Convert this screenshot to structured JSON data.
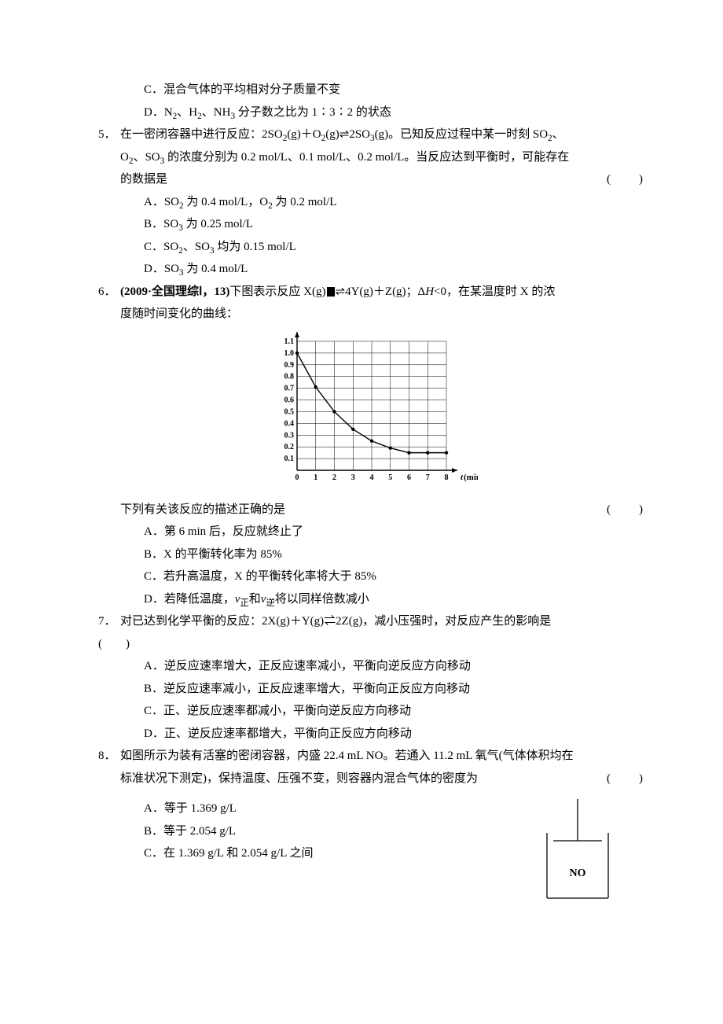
{
  "q4": {
    "optC": "C．混合气体的平均相对分子质量不变",
    "optD_pre": "D．N",
    "optD_mid1": "、H",
    "optD_mid2": "、NH",
    "optD_tail": " 分子数之比为 1∶3∶2 的状态"
  },
  "q5": {
    "num": "5．",
    "stem_pre": "在一密闭容器中进行反应：2SO",
    "stem_mid1": "(g)＋O",
    "stem_mid2": "(g)⇌2SO",
    "stem_mid3": "(g)。已知反应过程中某一时刻 SO",
    "line2_pre": "O",
    "line2_mid1": "、SO",
    "line2_mid2": " 的浓度分别为 0.2 mol/L、0.1 mol/L、0.2 mol/L。当反应达到平衡时，可能存在",
    "line3": "的数据是",
    "paren": "(　　)",
    "optA_pre": "A．SO",
    "optA_mid": " 为 0.4 mol/L，O",
    "optA_tail": " 为 0.2 mol/L",
    "optB_pre": "B．SO",
    "optB_tail": " 为 0.25 mol/L",
    "optC_pre": "C．SO",
    "optC_mid": "、SO",
    "optC_tail": " 均为 0.15 mol/L",
    "optD_pre": "D．SO",
    "optD_tail": " 为 0.4 mol/L"
  },
  "q6": {
    "num": "6．",
    "bold": "(2009·全国理综Ⅰ，13)",
    "stem_pre": "下图表示反应 X(g)",
    "stem_mid": "4Y(g)＋Z(g)；Δ",
    "stem_H": "H",
    "stem_lt": "<0，在某温度时 X 的浓",
    "line2": "度随时间变化的曲线：",
    "after_chart": "下列有关该反应的描述正确的是",
    "paren": "(　　)",
    "optA": "A．第 6 min 后，反应就终止了",
    "optB": "B．X 的平衡转化率为 85%",
    "optC": "C．若升高温度，X 的平衡转化率将大于 85%",
    "optD_pre": "D．若降低温度，",
    "optD_v1": "v",
    "optD_sub1": "正",
    "optD_mid": "和",
    "optD_v2": "v",
    "optD_sub2": "逆",
    "optD_tail": "将以同样倍数减小",
    "chart": {
      "type": "line",
      "x_label": "t(min)",
      "y_label": "c(mol/L)",
      "x_ticks": [
        0,
        1,
        2,
        3,
        4,
        5,
        6,
        7,
        8
      ],
      "y_ticks": [
        0.1,
        0.2,
        0.3,
        0.4,
        0.5,
        0.6,
        0.7,
        0.8,
        0.9,
        1.0,
        1.1
      ],
      "y_label_fontsize": 11,
      "tick_fontsize": 10,
      "points": [
        {
          "x": 0,
          "y": 1.0
        },
        {
          "x": 1,
          "y": 0.71
        },
        {
          "x": 2,
          "y": 0.5
        },
        {
          "x": 3,
          "y": 0.35
        },
        {
          "x": 4,
          "y": 0.25
        },
        {
          "x": 5,
          "y": 0.19
        },
        {
          "x": 6,
          "y": 0.15
        },
        {
          "x": 7,
          "y": 0.15
        },
        {
          "x": 8,
          "y": 0.15
        }
      ],
      "marker": "circle",
      "marker_size": 2.2,
      "line_width": 1.4,
      "axis_color": "#000000",
      "grid_color": "#000000",
      "grid_width": 0.5,
      "background_color": "#ffffff"
    }
  },
  "q7": {
    "num": "7．",
    "stem": "对已达到化学平衡的反应：2X(g)＋Y(g)⇌2Z(g)，减小压强时，对反应产生的影响是",
    "paren": "(　　)",
    "optA": "A．逆反应速率增大，正反应速率减小，平衡向逆反应方向移动",
    "optB": "B．逆反应速率减小，正反应速率增大，平衡向正反应方向移动",
    "optC": "C．正、逆反应速率都减小，平衡向逆反应方向移动",
    "optD": "D．正、逆反应速率都增大，平衡向正反应方向移动"
  },
  "q8": {
    "num": "8．",
    "stem1": "如图所示为装有活塞的密闭容器，内盛 22.4 mL NO。若通入 11.2 mL 氧气(气体体积均在",
    "stem2": "标准状况下测定)，保持温度、压强不变，则容器内混合气体的密度为",
    "paren": "(　　)",
    "optA": "A．等于 1.369 g/L",
    "optB": "B．等于 2.054 g/L",
    "optC": "C．在 1.369 g/L 和 2.054 g/L 之间",
    "fig_label": "NO",
    "fig": {
      "stroke": "#000000",
      "stroke_width": 1.3
    }
  }
}
